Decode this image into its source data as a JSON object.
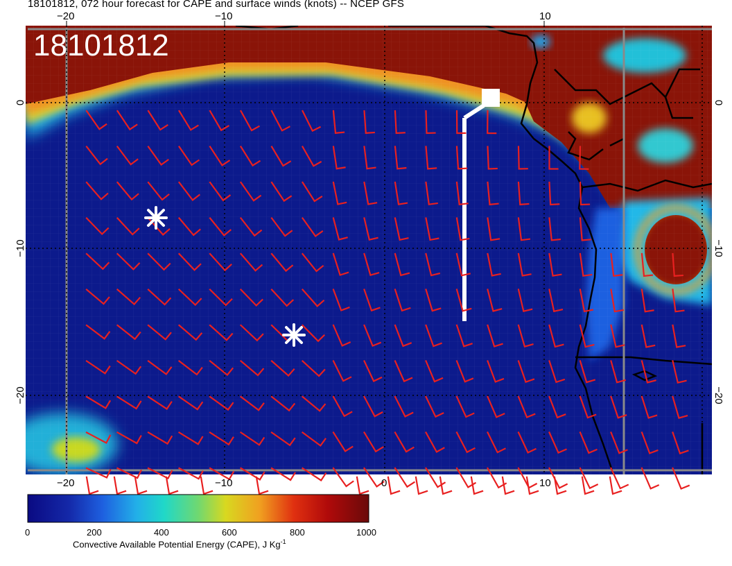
{
  "title": "18101812, 072 hour forecast for CAPE and surface winds (knots) -- NCEP GFS",
  "stamp": "18101812",
  "axes": {
    "top_lon_ticks": [
      "−20",
      "−10",
      "10"
    ],
    "bottom_lon_ticks": [
      "−20",
      "−10",
      "0",
      "10"
    ],
    "left_lat_ticks": [
      "0",
      "−10",
      "−20"
    ],
    "right_lat_ticks": [
      "0",
      "−10",
      "−20"
    ]
  },
  "colorbar": {
    "title_main": "Convective Available Potential Energy (CAPE), J Kg",
    "title_sup": "-1",
    "tick_labels": [
      "0",
      "200",
      "400",
      "600",
      "800",
      "1000"
    ],
    "min": 0,
    "max": 1000,
    "colors": [
      "#0a0a82",
      "#1840c8",
      "#22a0e8",
      "#20d8c8",
      "#c8d820",
      "#f0a020",
      "#e03010",
      "#9a0a0a",
      "#6a0a0a"
    ]
  },
  "markers": {
    "storm_symbols": 2,
    "colors": {
      "ocean": "#0c1a8c",
      "land": "#8a1408",
      "barb": "#e82020",
      "coast": "#000000"
    }
  }
}
